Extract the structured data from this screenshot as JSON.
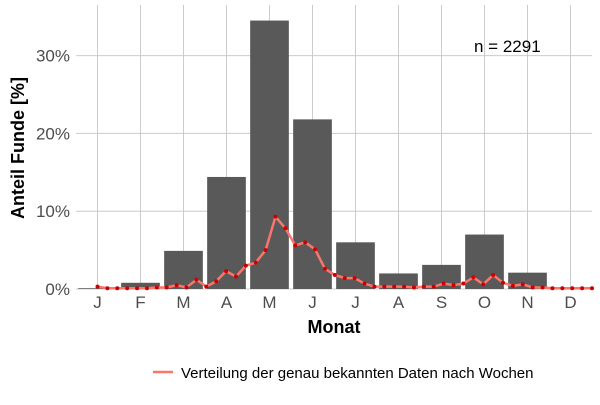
{
  "chart_data": {
    "type": "bar",
    "categories": [
      "J",
      "F",
      "M",
      "A",
      "M",
      "J",
      "J",
      "A",
      "S",
      "O",
      "N",
      "D"
    ],
    "values": [
      0.1,
      0.8,
      4.9,
      14.4,
      34.5,
      21.8,
      6.0,
      2.0,
      3.1,
      7.0,
      2.1,
      0.1
    ],
    "ylim": [
      0,
      36.5
    ],
    "y_ticks": [
      0,
      10,
      20,
      30
    ],
    "y_tick_labels": [
      "0%",
      "10%",
      "20%",
      "30%"
    ],
    "xlabel": "Monat",
    "ylabel": "Anteil Funde [%]",
    "annotation": "n = 2291",
    "grid": true,
    "legend_position": "bottom-right",
    "bar_color": "#595959",
    "series": [
      {
        "name": "Verteilung der genau bekannten Daten nach Wochen",
        "type": "line",
        "color": "#f8766d",
        "marker_color": "#cc0000",
        "x": [
          1.0,
          1.23,
          1.46,
          1.69,
          1.92,
          2.15,
          2.38,
          2.61,
          2.84,
          3.07,
          3.3,
          3.53,
          3.76,
          3.99,
          4.22,
          4.45,
          4.68,
          4.91,
          5.14,
          5.37,
          5.6,
          5.83,
          6.06,
          6.29,
          6.52,
          6.75,
          6.98,
          7.21,
          7.44,
          7.67,
          7.9,
          8.13,
          8.36,
          8.59,
          8.82,
          9.05,
          9.28,
          9.51,
          9.74,
          9.97,
          10.2,
          10.43,
          10.66,
          10.89,
          11.12,
          11.35,
          11.58,
          11.81,
          12.04,
          12.27,
          12.5
        ],
        "y": [
          0.3,
          0.1,
          0.1,
          0.1,
          0.1,
          0.1,
          0.2,
          0.2,
          0.5,
          0.2,
          1.2,
          0.3,
          1.0,
          2.3,
          1.6,
          3.0,
          3.4,
          5.0,
          9.3,
          7.8,
          5.6,
          6.0,
          5.1,
          2.6,
          1.8,
          1.4,
          1.4,
          0.7,
          0.3,
          0.3,
          0.3,
          0.3,
          0.2,
          0.3,
          0.3,
          0.7,
          0.5,
          0.7,
          1.5,
          0.6,
          1.8,
          0.8,
          0.4,
          0.6,
          0.2,
          0.2,
          0.1,
          0.1,
          0.1,
          0.1,
          0.1
        ]
      }
    ]
  }
}
